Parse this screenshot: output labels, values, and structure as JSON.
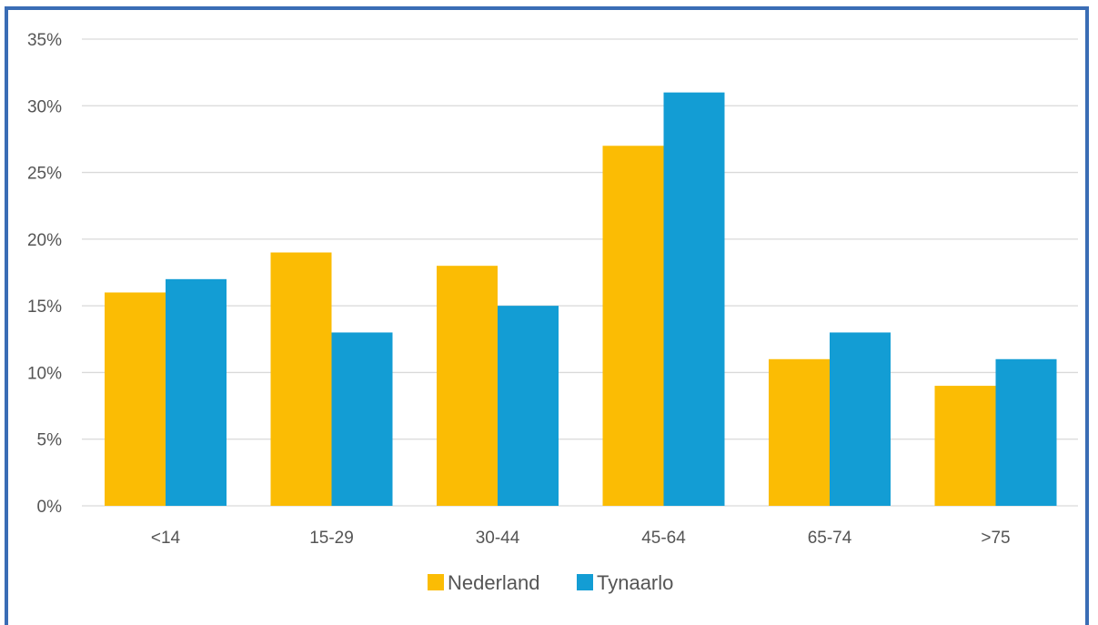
{
  "chart_data": {
    "type": "bar",
    "categories": [
      "<14",
      "15-29",
      "30-44",
      "45-64",
      "65-74",
      ">75"
    ],
    "series": [
      {
        "name": "Nederland",
        "color": "#fbbc04",
        "values": [
          16,
          19,
          18,
          27,
          11,
          9
        ]
      },
      {
        "name": "Tynaarlo",
        "color": "#139dd4",
        "values": [
          17,
          13,
          15,
          31,
          13,
          11
        ]
      }
    ],
    "ylim": [
      0,
      35
    ],
    "yticks": [
      0,
      5,
      10,
      15,
      20,
      25,
      30,
      35
    ],
    "ytick_labels": [
      "0%",
      "5%",
      "10%",
      "15%",
      "20%",
      "25%",
      "30%",
      "35%"
    ],
    "grid": true,
    "legend_position": "bottom",
    "title": "",
    "xlabel": "",
    "ylabel": ""
  },
  "colors": {
    "frame": "#3a6db5",
    "grid": "#d9d9d9",
    "text": "#555555"
  }
}
